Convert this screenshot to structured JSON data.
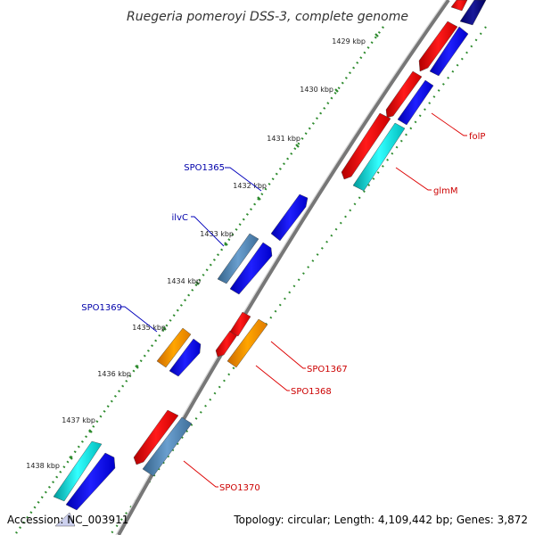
{
  "title": "Ruegeria pomeroyi DSS-3, complete genome",
  "footer": {
    "accession": "Accession: NC_003911",
    "summary": "Topology: circular; Length: 4,109,442 bp; Genes: 3,872"
  },
  "kbp_labels": [
    "1429 kbp",
    "1430 kbp",
    "1431 kbp",
    "1432 kbp",
    "1433 kbp",
    "1434 kbp",
    "1435 kbp",
    "1436 kbp",
    "1437 kbp",
    "1438 kbp"
  ],
  "gene_labels": [
    {
      "text": "folP",
      "side": "outer",
      "color": "#cc0000"
    },
    {
      "text": "glmM",
      "side": "outer",
      "color": "#cc0000"
    },
    {
      "text": "SPO1367",
      "side": "outer",
      "color": "#cc0000"
    },
    {
      "text": "SPO1368",
      "side": "outer",
      "color": "#cc0000"
    },
    {
      "text": "SPO1370",
      "side": "outer",
      "color": "#cc0000"
    },
    {
      "text": "SPO1365",
      "side": "inner",
      "color": "#0000aa"
    },
    {
      "text": "ilvC",
      "side": "inner",
      "color": "#0000aa"
    },
    {
      "text": "SPO1369",
      "side": "inner",
      "color": "#0000aa"
    }
  ],
  "colors": {
    "forward_cds": "#ff0000",
    "reverse_cds": "#0000ff",
    "trna_like": "#00cccc",
    "steelblue": "#4682b4",
    "orange": "#ff8c00",
    "backbone": "#888888",
    "tick_green": "#2e8b2e"
  }
}
